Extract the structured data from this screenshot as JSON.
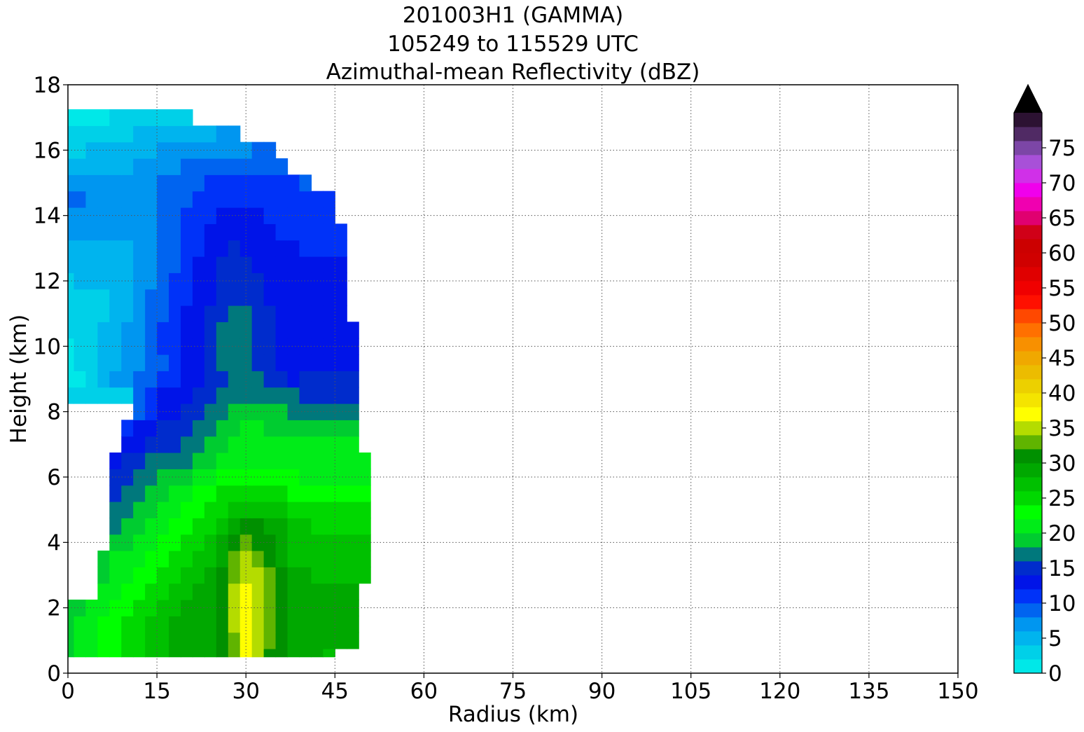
{
  "chart_data": {
    "type": "contour",
    "title_lines": [
      "201003H1 (GAMMA)",
      "105249 to 115529 UTC",
      "Azimuthal-mean Reflectivity (dBZ)"
    ],
    "xlabel": "Radius (km)",
    "ylabel": "Height (km)",
    "xlim": [
      0,
      150
    ],
    "ylim": [
      0,
      18
    ],
    "xticks": [
      0,
      15,
      30,
      45,
      60,
      75,
      90,
      105,
      120,
      135,
      150
    ],
    "yticks": [
      0,
      2,
      4,
      6,
      8,
      10,
      12,
      14,
      16,
      18
    ],
    "grid": true,
    "radius_km": [
      0,
      2,
      4,
      6,
      8,
      10,
      12,
      14,
      16,
      18,
      20,
      22,
      24,
      26,
      28,
      30,
      32,
      34,
      36,
      38,
      40,
      42,
      44,
      46,
      48,
      50
    ],
    "height_km": [
      0.5,
      1,
      1.5,
      2,
      2.5,
      3,
      3.5,
      4,
      4.5,
      5,
      5.5,
      6,
      6.5,
      7,
      7.5,
      8,
      8.5,
      9,
      9.5,
      10,
      10.5,
      11,
      11.5,
      12,
      12.5,
      13,
      13.5,
      14,
      14.5,
      15,
      15.5,
      16,
      16.5,
      17
    ],
    "reflectivity_dbz": [
      [
        19,
        20,
        21,
        22,
        23,
        24,
        25,
        26,
        27,
        28,
        28,
        29,
        29,
        30,
        32,
        36,
        34,
        31,
        30,
        29,
        28,
        28,
        27,
        null,
        null,
        null
      ],
      [
        19,
        20,
        21,
        22,
        23,
        24,
        25,
        26,
        27,
        28,
        28,
        29,
        29,
        31,
        33,
        36,
        35,
        32,
        30,
        29,
        28,
        28,
        28,
        28,
        28,
        null
      ],
      [
        19,
        20,
        21,
        22,
        23,
        24,
        25,
        26,
        27,
        28,
        28,
        29,
        29,
        31,
        34,
        37,
        35,
        33,
        30,
        29,
        28,
        28,
        28,
        28,
        28,
        null
      ],
      [
        19,
        19,
        20,
        21,
        22,
        23,
        24,
        25,
        26,
        27,
        28,
        29,
        29,
        31,
        34,
        37,
        35,
        33,
        31,
        29,
        28,
        28,
        28,
        28,
        28,
        null
      ],
      [
        null,
        null,
        null,
        20,
        21,
        22,
        23,
        24,
        25,
        26,
        27,
        28,
        29,
        31,
        34,
        36,
        35,
        33,
        31,
        29,
        28,
        28,
        28,
        28,
        28,
        null
      ],
      [
        null,
        null,
        null,
        19,
        20,
        21,
        22,
        23,
        24,
        25,
        26,
        27,
        28,
        30,
        33,
        35,
        34,
        32,
        30,
        28,
        28,
        27,
        27,
        27,
        27,
        27
      ],
      [
        null,
        null,
        null,
        19,
        20,
        21,
        21,
        22,
        23,
        24,
        25,
        26,
        27,
        29,
        32,
        34,
        33,
        31,
        29,
        27,
        27,
        26,
        26,
        26,
        26,
        26
      ],
      [
        null,
        null,
        null,
        null,
        18,
        19,
        20,
        21,
        22,
        23,
        24,
        25,
        26,
        28,
        30,
        32,
        31,
        30,
        28,
        27,
        26,
        26,
        26,
        26,
        26,
        26
      ],
      [
        null,
        null,
        null,
        null,
        17,
        18,
        19,
        20,
        21,
        22,
        23,
        24,
        25,
        26,
        28,
        30,
        30,
        29,
        28,
        27,
        26,
        25,
        25,
        25,
        25,
        25
      ],
      [
        null,
        null,
        null,
        null,
        16,
        17,
        18,
        19,
        20,
        21,
        22,
        23,
        24,
        25,
        26,
        27,
        27,
        27,
        26,
        25,
        25,
        24,
        24,
        24,
        24,
        24
      ],
      [
        null,
        null,
        null,
        null,
        15,
        16,
        17,
        18,
        19,
        20,
        21,
        22,
        23,
        24,
        25,
        25,
        25,
        24,
        24,
        23,
        23,
        23,
        23,
        23,
        23,
        23
      ],
      [
        null,
        null,
        null,
        null,
        14,
        15,
        16,
        17,
        18,
        18,
        19,
        20,
        21,
        22,
        22,
        22,
        22,
        22,
        22,
        22,
        21,
        21,
        21,
        21,
        21,
        21
      ],
      [
        null,
        null,
        null,
        null,
        12,
        14,
        15,
        16,
        16,
        17,
        17,
        18,
        19,
        20,
        21,
        21,
        21,
        20,
        20,
        20,
        20,
        20,
        20,
        20,
        20,
        20
      ],
      [
        null,
        null,
        null,
        null,
        null,
        12,
        13,
        14,
        15,
        15,
        16,
        17,
        18,
        19,
        20,
        21,
        21,
        20,
        20,
        20,
        20,
        20,
        20,
        20,
        20,
        null
      ],
      [
        null,
        null,
        null,
        null,
        null,
        11,
        12,
        13,
        14,
        14,
        15,
        16,
        17,
        18,
        19,
        20,
        20,
        19,
        19,
        19,
        19,
        19,
        19,
        19,
        19,
        null
      ],
      [
        null,
        null,
        null,
        null,
        null,
        null,
        9,
        11,
        13,
        13,
        14,
        15,
        16,
        17,
        18,
        18,
        18,
        18,
        18,
        17,
        17,
        17,
        17,
        17,
        17,
        null
      ],
      [
        3,
        3,
        3,
        3,
        3,
        3,
        8,
        10,
        12,
        12,
        13,
        14,
        15,
        16,
        16,
        16,
        16,
        16,
        16,
        16,
        15,
        15,
        15,
        15,
        15,
        null
      ],
      [
        1,
        1,
        3,
        5,
        6,
        7,
        8,
        9,
        10,
        11,
        12,
        13,
        14,
        15,
        16,
        16,
        16,
        15,
        14,
        13,
        14,
        14,
        14,
        14,
        14,
        null
      ],
      [
        1,
        2,
        3,
        4,
        5,
        6,
        7,
        8,
        9,
        11,
        12,
        13,
        14,
        16,
        16,
        16,
        15,
        14,
        13,
        13,
        13,
        13,
        13,
        13,
        13,
        null
      ],
      [
        1,
        2,
        3,
        4,
        5,
        6,
        7,
        8,
        10,
        11,
        12,
        13,
        14,
        16,
        16,
        16,
        15,
        14,
        13,
        13,
        13,
        13,
        13,
        13,
        13,
        null
      ],
      [
        2,
        2,
        3,
        4,
        5,
        6,
        7,
        8,
        10,
        11,
        12,
        13,
        14,
        16,
        16,
        16,
        15,
        14,
        13,
        13,
        13,
        13,
        13,
        13,
        13,
        null
      ],
      [
        3,
        3,
        3,
        3,
        4,
        5,
        6,
        8,
        9,
        11,
        12,
        13,
        14,
        15,
        16,
        16,
        15,
        14,
        13,
        13,
        13,
        13,
        13,
        13,
        null,
        null
      ],
      [
        3,
        3,
        3,
        3,
        4,
        5,
        6,
        8,
        9,
        10,
        11,
        12,
        13,
        14,
        15,
        15,
        14,
        13,
        13,
        13,
        12,
        12,
        12,
        12,
        null,
        null
      ],
      [
        3,
        4,
        4,
        4,
        4,
        5,
        6,
        7,
        8,
        10,
        11,
        12,
        13,
        14,
        15,
        14,
        14,
        13,
        13,
        12,
        12,
        12,
        12,
        12,
        null,
        null
      ],
      [
        5,
        5,
        5,
        5,
        5,
        5,
        6,
        7,
        8,
        9,
        11,
        12,
        13,
        14,
        14,
        14,
        13,
        13,
        12,
        12,
        12,
        12,
        12,
        12,
        null,
        null
      ],
      [
        5,
        5,
        5,
        5,
        5,
        5,
        6,
        7,
        8,
        9,
        10,
        11,
        12,
        13,
        14,
        13,
        13,
        12,
        12,
        12,
        11,
        11,
        11,
        11,
        null,
        null
      ],
      [
        6,
        6,
        6,
        6,
        6,
        6,
        6,
        7,
        8,
        9,
        10,
        11,
        12,
        13,
        13,
        13,
        12,
        12,
        11,
        11,
        11,
        11,
        11,
        11,
        null,
        null
      ],
      [
        7,
        7,
        6,
        6,
        6,
        6,
        6,
        7,
        8,
        9,
        10,
        10,
        11,
        12,
        12,
        12,
        12,
        11,
        11,
        11,
        10,
        10,
        10,
        null,
        null,
        null
      ],
      [
        8,
        8,
        7,
        6,
        6,
        6,
        6,
        7,
        8,
        9,
        9,
        10,
        10,
        11,
        11,
        11,
        11,
        11,
        10,
        10,
        10,
        10,
        10,
        null,
        null,
        null
      ],
      [
        7,
        6,
        6,
        6,
        6,
        6,
        6,
        7,
        8,
        8,
        9,
        9,
        10,
        10,
        10,
        10,
        10,
        10,
        10,
        10,
        9,
        null,
        null,
        null,
        null,
        null
      ],
      [
        5,
        5,
        5,
        5,
        5,
        5,
        6,
        6,
        7,
        7,
        8,
        8,
        9,
        9,
        9,
        9,
        9,
        9,
        9,
        null,
        null,
        null,
        null,
        null,
        null,
        null
      ],
      [
        3,
        3,
        4,
        4,
        4,
        4,
        5,
        5,
        6,
        6,
        7,
        7,
        7,
        7,
        7,
        7,
        8,
        8,
        null,
        null,
        null,
        null,
        null,
        null,
        null,
        null
      ],
      [
        2,
        2,
        2,
        3,
        3,
        3,
        4,
        4,
        4,
        5,
        5,
        5,
        5,
        6,
        6,
        null,
        null,
        null,
        null,
        null,
        null,
        null,
        null,
        null,
        null,
        null
      ],
      [
        1,
        1,
        1,
        1,
        2,
        2,
        2,
        3,
        3,
        3,
        3,
        null,
        null,
        null,
        null,
        null,
        null,
        null,
        null,
        null,
        null,
        null,
        null,
        null,
        null,
        null
      ]
    ],
    "colorbar": {
      "label_ticks": [
        0,
        5,
        10,
        15,
        20,
        25,
        30,
        35,
        40,
        45,
        50,
        55,
        60,
        65,
        70,
        75
      ],
      "levels_dbz": [
        0,
        2,
        4,
        6,
        8,
        10,
        12,
        14,
        16,
        18,
        20,
        22,
        24,
        26,
        28,
        30,
        32,
        34,
        36,
        38,
        40,
        42,
        44,
        46,
        48,
        50,
        52,
        54,
        56,
        58,
        60,
        62,
        64,
        66,
        68,
        70,
        72,
        74,
        76,
        78,
        80
      ],
      "extend": "max",
      "extend_color": "#000000",
      "colors": [
        "#00e8e8",
        "#00d0e8",
        "#00b4ee",
        "#0096f0",
        "#0064f0",
        "#0032f8",
        "#0014e8",
        "#002ccc",
        "#00787c",
        "#00cc30",
        "#00ec18",
        "#00ff00",
        "#00d800",
        "#00c000",
        "#00a800",
        "#009000",
        "#60b400",
        "#b4dc00",
        "#ffff00",
        "#f4e400",
        "#ecd000",
        "#ecbc00",
        "#f0a800",
        "#f89000",
        "#ff7000",
        "#ff4800",
        "#ff1000",
        "#f00000",
        "#e00000",
        "#d00000",
        "#cc0000",
        "#d00018",
        "#e00070",
        "#f000b0",
        "#f000ec",
        "#d030e8",
        "#a850d8",
        "#7c46a6",
        "#502a64",
        "#2c1232"
      ]
    }
  }
}
